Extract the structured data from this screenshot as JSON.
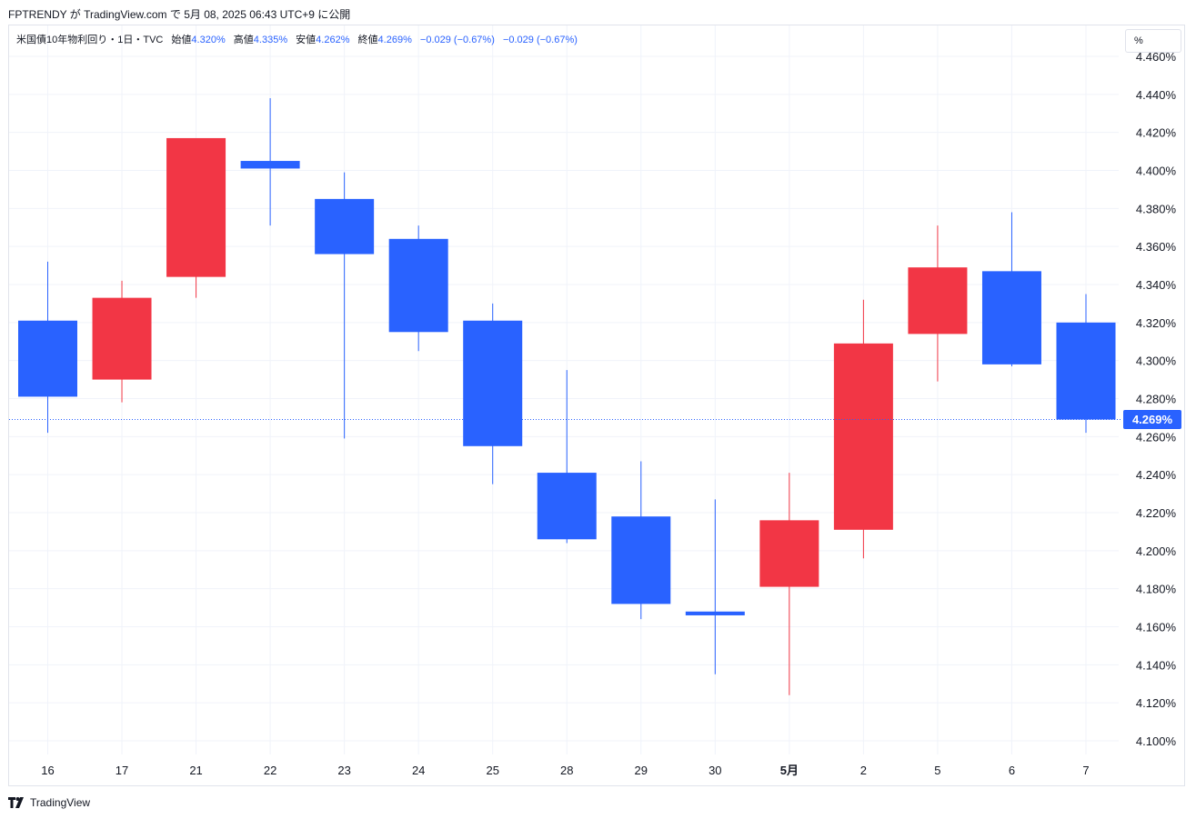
{
  "publish": {
    "author": "FPTRENDY",
    "via": "が TradingView.com で",
    "date": "5月 08, 2025 06:43 UTC+9",
    "suffix": "に公開"
  },
  "legend": {
    "symbol": "米国債10年物利回り・1日・TVC",
    "open_label": "始値",
    "open_value": "4.320%",
    "high_label": "高値",
    "high_value": "4.335%",
    "low_label": "安値",
    "low_value": "4.262%",
    "close_label": "終値",
    "close_value": "4.269%",
    "change_1": "−0.029 (−0.67%)",
    "change_2": "−0.029 (−0.67%)"
  },
  "unit_label": "%",
  "last_price_label": "4.269%",
  "footer": {
    "brand": "TradingView"
  },
  "colors": {
    "up": "#f23645",
    "down": "#2962ff",
    "grid": "#f0f3fa"
  },
  "chart_data": {
    "type": "candlestick",
    "title": "",
    "categories": [
      "16",
      "17",
      "21",
      "22",
      "23",
      "24",
      "25",
      "28",
      "29",
      "30",
      "5月",
      "2",
      "5",
      "6",
      "7"
    ],
    "bold_categories": [
      "5月"
    ],
    "ylim": [
      4.093,
      4.46
    ],
    "yticks": [
      "4.100%",
      "4.120%",
      "4.140%",
      "4.160%",
      "4.180%",
      "4.200%",
      "4.220%",
      "4.240%",
      "4.260%",
      "4.280%",
      "4.300%",
      "4.320%",
      "4.340%",
      "4.360%",
      "4.380%",
      "4.400%",
      "4.420%",
      "4.440%",
      "4.460%"
    ],
    "last_price": 4.269,
    "candles": [
      {
        "date": "16",
        "open": 4.321,
        "high": 4.352,
        "low": 4.262,
        "close": 4.281
      },
      {
        "date": "17",
        "open": 4.29,
        "high": 4.342,
        "low": 4.278,
        "close": 4.333
      },
      {
        "date": "21",
        "open": 4.344,
        "high": 4.417,
        "low": 4.333,
        "close": 4.417
      },
      {
        "date": "22",
        "open": 4.405,
        "high": 4.438,
        "low": 4.371,
        "close": 4.401
      },
      {
        "date": "23",
        "open": 4.385,
        "high": 4.399,
        "low": 4.259,
        "close": 4.356
      },
      {
        "date": "24",
        "open": 4.364,
        "high": 4.371,
        "low": 4.305,
        "close": 4.315
      },
      {
        "date": "25",
        "open": 4.321,
        "high": 4.33,
        "low": 4.235,
        "close": 4.255
      },
      {
        "date": "28",
        "open": 4.241,
        "high": 4.295,
        "low": 4.204,
        "close": 4.206
      },
      {
        "date": "29",
        "open": 4.218,
        "high": 4.247,
        "low": 4.164,
        "close": 4.172
      },
      {
        "date": "30",
        "open": 4.168,
        "high": 4.227,
        "low": 4.135,
        "close": 4.166
      },
      {
        "date": "5月",
        "open": 4.181,
        "high": 4.241,
        "low": 4.124,
        "close": 4.216
      },
      {
        "date": "2",
        "open": 4.211,
        "high": 4.332,
        "low": 4.196,
        "close": 4.309
      },
      {
        "date": "5",
        "open": 4.314,
        "high": 4.371,
        "low": 4.289,
        "close": 4.349
      },
      {
        "date": "6",
        "open": 4.347,
        "high": 4.378,
        "low": 4.297,
        "close": 4.298
      },
      {
        "date": "7",
        "open": 4.32,
        "high": 4.335,
        "low": 4.262,
        "close": 4.269
      }
    ]
  }
}
